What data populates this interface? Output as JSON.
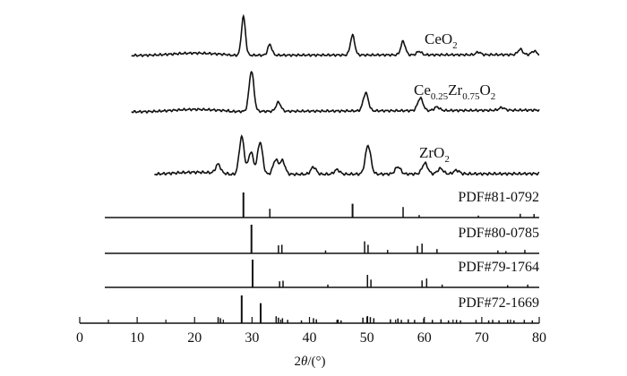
{
  "chart_data": {
    "type": "line",
    "title": "",
    "xlabel": "2θ/(°)",
    "ylabel": "",
    "xlim": [
      0,
      80
    ],
    "xticks": [
      0,
      10,
      20,
      30,
      40,
      50,
      60,
      70,
      80
    ],
    "grid": false,
    "legend": "none",
    "series": [
      {
        "name": "CeO2",
        "label_main": "CeO",
        "label_sub": "2",
        "peaks": [
          {
            "x": 28.5,
            "h": 43
          },
          {
            "x": 33.1,
            "h": 12
          },
          {
            "x": 47.5,
            "h": 22
          },
          {
            "x": 56.3,
            "h": 15
          },
          {
            "x": 59.1,
            "h": 4
          },
          {
            "x": 69.4,
            "h": 3
          },
          {
            "x": 76.7,
            "h": 6
          },
          {
            "x": 79.1,
            "h": 4
          }
        ]
      },
      {
        "name": "Ce0.25Zr0.75O2",
        "label_parts": [
          {
            "t": "Ce",
            "sub": false
          },
          {
            "t": "0.25",
            "sub": true
          },
          {
            "t": "Zr",
            "sub": false
          },
          {
            "t": "0.75",
            "sub": true
          },
          {
            "t": "O",
            "sub": false
          },
          {
            "t": "2",
            "sub": true
          }
        ],
        "peaks": [
          {
            "x": 29.9,
            "h": 45
          },
          {
            "x": 34.6,
            "h": 10
          },
          {
            "x": 49.8,
            "h": 20
          },
          {
            "x": 59.3,
            "h": 14
          },
          {
            "x": 62.2,
            "h": 4
          },
          {
            "x": 73.5,
            "h": 3
          }
        ]
      },
      {
        "name": "ZrO2",
        "label_main": "ZrO",
        "label_sub": "2",
        "peaks": [
          {
            "x": 24.1,
            "h": 10
          },
          {
            "x": 28.2,
            "h": 42
          },
          {
            "x": 29.8,
            "h": 25
          },
          {
            "x": 31.4,
            "h": 36
          },
          {
            "x": 34.1,
            "h": 16
          },
          {
            "x": 35.3,
            "h": 15
          },
          {
            "x": 40.7,
            "h": 8
          },
          {
            "x": 44.8,
            "h": 5
          },
          {
            "x": 50.2,
            "h": 32
          },
          {
            "x": 55.4,
            "h": 8
          },
          {
            "x": 60.1,
            "h": 12
          },
          {
            "x": 62.8,
            "h": 6
          },
          {
            "x": 65.6,
            "h": 4
          }
        ]
      }
    ],
    "references": [
      {
        "label": "PDF#81-0792",
        "sticks": [
          {
            "x": 28.5,
            "h": 1.0
          },
          {
            "x": 33.1,
            "h": 0.35
          },
          {
            "x": 47.5,
            "h": 0.55
          },
          {
            "x": 56.3,
            "h": 0.42
          },
          {
            "x": 59.1,
            "h": 0.1
          },
          {
            "x": 69.4,
            "h": 0.08
          },
          {
            "x": 76.7,
            "h": 0.15
          },
          {
            "x": 79.1,
            "h": 0.14
          }
        ]
      },
      {
        "label": "PDF#80-0785",
        "sticks": [
          {
            "x": 29.9,
            "h": 1.0
          },
          {
            "x": 34.6,
            "h": 0.28
          },
          {
            "x": 35.2,
            "h": 0.3
          },
          {
            "x": 42.8,
            "h": 0.1
          },
          {
            "x": 49.6,
            "h": 0.42
          },
          {
            "x": 50.2,
            "h": 0.3
          },
          {
            "x": 53.6,
            "h": 0.12
          },
          {
            "x": 58.8,
            "h": 0.26
          },
          {
            "x": 59.6,
            "h": 0.34
          },
          {
            "x": 62.2,
            "h": 0.15
          },
          {
            "x": 72.8,
            "h": 0.1
          },
          {
            "x": 74.2,
            "h": 0.08
          },
          {
            "x": 77.5,
            "h": 0.12
          }
        ]
      },
      {
        "label": "PDF#79-1764",
        "sticks": [
          {
            "x": 30.1,
            "h": 1.0
          },
          {
            "x": 34.8,
            "h": 0.22
          },
          {
            "x": 35.4,
            "h": 0.24
          },
          {
            "x": 43.2,
            "h": 0.1
          },
          {
            "x": 50.1,
            "h": 0.45
          },
          {
            "x": 50.7,
            "h": 0.28
          },
          {
            "x": 59.6,
            "h": 0.25
          },
          {
            "x": 60.4,
            "h": 0.32
          },
          {
            "x": 63.1,
            "h": 0.1
          },
          {
            "x": 74.5,
            "h": 0.08
          },
          {
            "x": 78.0,
            "h": 0.1
          }
        ]
      },
      {
        "label": "PDF#72-1669",
        "sticks": [
          {
            "x": 24.1,
            "h": 0.22
          },
          {
            "x": 24.5,
            "h": 0.18
          },
          {
            "x": 28.2,
            "h": 1.0
          },
          {
            "x": 31.5,
            "h": 0.72
          },
          {
            "x": 34.2,
            "h": 0.25
          },
          {
            "x": 34.6,
            "h": 0.2
          },
          {
            "x": 35.3,
            "h": 0.18
          },
          {
            "x": 36.2,
            "h": 0.12
          },
          {
            "x": 38.6,
            "h": 0.1
          },
          {
            "x": 40.7,
            "h": 0.18
          },
          {
            "x": 41.2,
            "h": 0.14
          },
          {
            "x": 44.8,
            "h": 0.12
          },
          {
            "x": 45.5,
            "h": 0.1
          },
          {
            "x": 49.3,
            "h": 0.2
          },
          {
            "x": 50.1,
            "h": 0.26
          },
          {
            "x": 50.6,
            "h": 0.22
          },
          {
            "x": 51.2,
            "h": 0.18
          },
          {
            "x": 54.1,
            "h": 0.14
          },
          {
            "x": 55.4,
            "h": 0.17
          },
          {
            "x": 56.0,
            "h": 0.12
          },
          {
            "x": 57.2,
            "h": 0.14
          },
          {
            "x": 58.3,
            "h": 0.12
          },
          {
            "x": 59.9,
            "h": 0.17
          },
          {
            "x": 61.4,
            "h": 0.12
          },
          {
            "x": 62.9,
            "h": 0.14
          },
          {
            "x": 64.2,
            "h": 0.1
          },
          {
            "x": 65.6,
            "h": 0.12
          },
          {
            "x": 66.3,
            "h": 0.1
          },
          {
            "x": 69.0,
            "h": 0.12
          },
          {
            "x": 71.2,
            "h": 0.1
          },
          {
            "x": 71.9,
            "h": 0.12
          },
          {
            "x": 73.0,
            "h": 0.1
          },
          {
            "x": 74.5,
            "h": 0.12
          },
          {
            "x": 75.6,
            "h": 0.1
          },
          {
            "x": 77.4,
            "h": 0.12
          },
          {
            "x": 78.8,
            "h": 0.1
          }
        ]
      }
    ]
  }
}
